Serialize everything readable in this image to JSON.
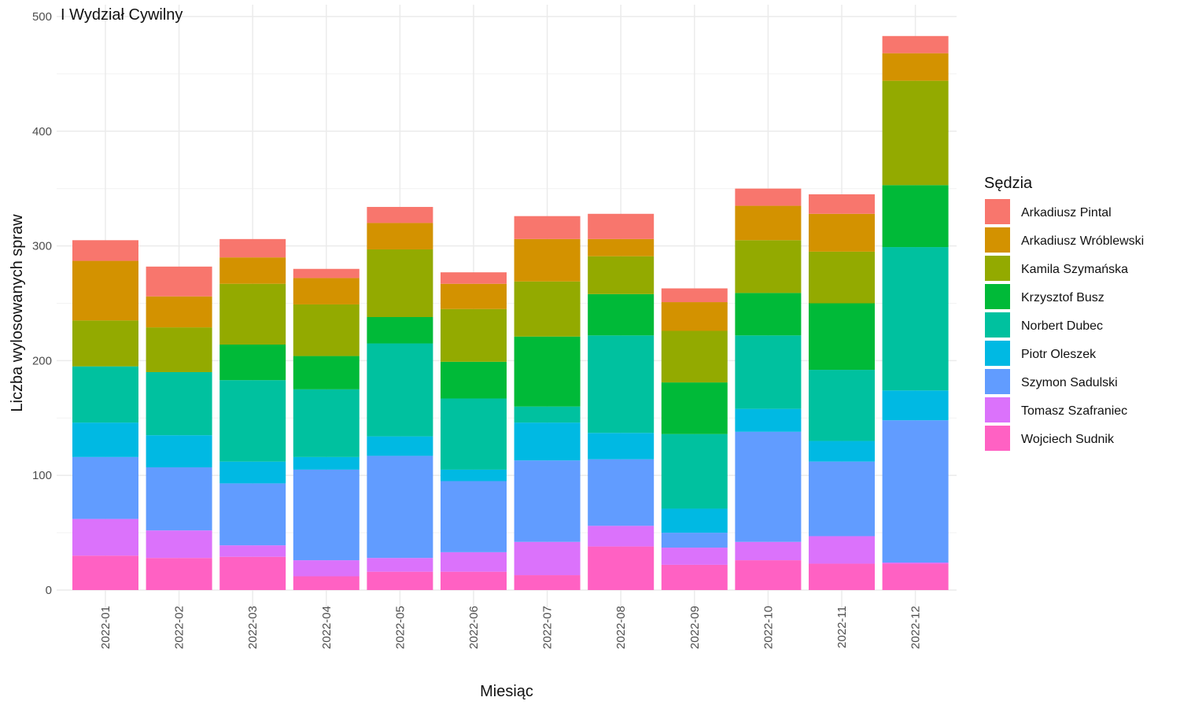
{
  "chart_data": {
    "type": "bar",
    "stacked": true,
    "title": "I Wydział Cywilny",
    "xlabel": "Miesiąc",
    "ylabel": "Liczba wylosowanych spraw",
    "ylim": [
      0,
      500
    ],
    "yticks": [
      0,
      100,
      200,
      300,
      400,
      500
    ],
    "grid": true,
    "legend": {
      "title": "Sędzia",
      "position": "right"
    },
    "categories": [
      "2022-01",
      "2022-02",
      "2022-03",
      "2022-04",
      "2022-05",
      "2022-06",
      "2022-07",
      "2022-08",
      "2022-09",
      "2022-10",
      "2022-11",
      "2022-12"
    ],
    "series": [
      {
        "name": "Wojciech Sudnik",
        "color": "#FF61C3",
        "values": [
          30,
          28,
          29,
          12,
          16,
          16,
          13,
          38,
          22,
          26,
          23,
          23
        ]
      },
      {
        "name": "Tomasz Szafraniec",
        "color": "#DB72FB",
        "values": [
          32,
          24,
          10,
          14,
          12,
          17,
          29,
          18,
          15,
          16,
          24,
          1
        ]
      },
      {
        "name": "Szymon Sadulski",
        "color": "#619CFF",
        "values": [
          54,
          55,
          54,
          79,
          89,
          62,
          71,
          58,
          13,
          96,
          65,
          124
        ]
      },
      {
        "name": "Piotr Oleszek",
        "color": "#00B9E3",
        "values": [
          30,
          28,
          19,
          11,
          17,
          10,
          33,
          23,
          21,
          20,
          18,
          26
        ]
      },
      {
        "name": "Norbert Dubec",
        "color": "#00C19F",
        "values": [
          49,
          55,
          71,
          59,
          81,
          62,
          14,
          85,
          65,
          64,
          62,
          125
        ]
      },
      {
        "name": "Krzysztof Busz",
        "color": "#00BA38",
        "values": [
          0,
          0,
          31,
          29,
          23,
          32,
          61,
          36,
          45,
          37,
          58,
          54
        ]
      },
      {
        "name": "Kamila Szymańska",
        "color": "#93AA00",
        "values": [
          40,
          39,
          53,
          45,
          59,
          46,
          48,
          33,
          45,
          46,
          45,
          91
        ]
      },
      {
        "name": "Arkadiusz Wróblewski",
        "color": "#D39200",
        "values": [
          52,
          27,
          23,
          23,
          23,
          22,
          37,
          15,
          25,
          30,
          33,
          24
        ]
      },
      {
        "name": "Arkadiusz Pintal",
        "color": "#F8766D",
        "values": [
          18,
          26,
          16,
          8,
          14,
          10,
          20,
          22,
          12,
          15,
          17,
          15
        ]
      }
    ],
    "legend_order": [
      "Arkadiusz Pintal",
      "Arkadiusz Wróblewski",
      "Kamila Szymańska",
      "Krzysztof Busz",
      "Norbert Dubec",
      "Piotr Oleszek",
      "Szymon Sadulski",
      "Tomasz Szafraniec",
      "Wojciech Sudnik"
    ]
  }
}
